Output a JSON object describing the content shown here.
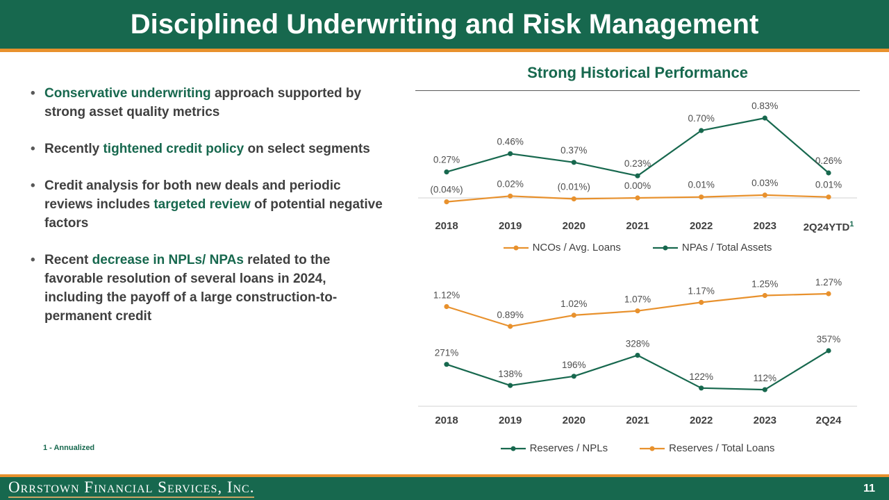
{
  "header": {
    "title": "Disciplined Underwriting and Risk Management"
  },
  "bullets": [
    {
      "segments": [
        {
          "text": "Conservative underwriting",
          "highlight": true
        },
        {
          "text": " approach supported by strong asset quality metrics",
          "highlight": false
        }
      ]
    },
    {
      "segments": [
        {
          "text": "Recently ",
          "highlight": false
        },
        {
          "text": "tightened credit policy",
          "highlight": true
        },
        {
          "text": " on select segments",
          "highlight": false
        }
      ]
    },
    {
      "segments": [
        {
          "text": "Credit analysis for both new deals and periodic reviews includes ",
          "highlight": false
        },
        {
          "text": "targeted review",
          "highlight": true
        },
        {
          "text": " of potential negative factors",
          "highlight": false
        }
      ]
    },
    {
      "segments": [
        {
          "text": "Recent ",
          "highlight": false
        },
        {
          "text": "decrease in NPLs/ NPAs",
          "highlight": true
        },
        {
          "text": " related to the favorable resolution of several loans in 2024, including the payoff of a large construction-to-permanent credit",
          "highlight": false
        }
      ]
    }
  ],
  "chart_section": {
    "title": "Strong Historical Performance"
  },
  "chart_data": [
    {
      "type": "line",
      "categories": [
        "2018",
        "2019",
        "2020",
        "2021",
        "2022",
        "2023",
        "2Q24YTD"
      ],
      "category_footnote_marker": "1",
      "legend_position": "bottom",
      "grid": false,
      "series": [
        {
          "name": "NCOs / Avg. Loans",
          "color": "#E8912D",
          "values": [
            -0.04,
            0.02,
            -0.01,
            0,
            0.01,
            0.03,
            0.01
          ],
          "labels": [
            "(0.04%)",
            "0.02%",
            "(0.01%)",
            "0.00%",
            "0.01%",
            "0.03%",
            "0.01%"
          ],
          "ylim": [
            -0.25,
            0.83
          ]
        },
        {
          "name": "NPAs / Total Assets",
          "color": "#17684E",
          "values": [
            0.27,
            0.46,
            0.37,
            0.23,
            0.7,
            0.83,
            0.26
          ],
          "labels": [
            "0.27%",
            "0.46%",
            "0.37%",
            "0.23%",
            "0.70%",
            "0.83%",
            "0.26%"
          ],
          "ylim": [
            -0.25,
            0.83
          ]
        }
      ]
    },
    {
      "type": "line",
      "categories": [
        "2018",
        "2019",
        "2020",
        "2021",
        "2022",
        "2023",
        "2Q24"
      ],
      "legend_position": "bottom",
      "grid": false,
      "series": [
        {
          "name": "Reserves / NPLs",
          "color": "#17684E",
          "values": [
            271,
            138,
            196,
            328,
            122,
            112,
            357
          ],
          "labels": [
            "271%",
            "138%",
            "196%",
            "328%",
            "122%",
            "112%",
            "357%"
          ],
          "ylim": [
            100,
            357
          ]
        },
        {
          "name": "Reserves / Total Loans",
          "color": "#E8912D",
          "values": [
            1.12,
            0.89,
            1.02,
            1.07,
            1.17,
            1.25,
            1.27
          ],
          "labels": [
            "1.12%",
            "0.89%",
            "1.02%",
            "1.07%",
            "1.17%",
            "1.25%",
            "1.27%"
          ],
          "ylim": [
            0.8,
            1.27
          ]
        }
      ]
    }
  ],
  "footnote": "1 - Annualized",
  "footer": {
    "logo": "Orrstown Financial Services, Inc.",
    "page_number": "11"
  },
  "colors": {
    "brand_green": "#17684E",
    "accent_orange": "#E8912D",
    "text_dark": "#3F3F3F",
    "axis_gray": "#D9D9D9",
    "logo_underline_tan": "#C9A565"
  }
}
